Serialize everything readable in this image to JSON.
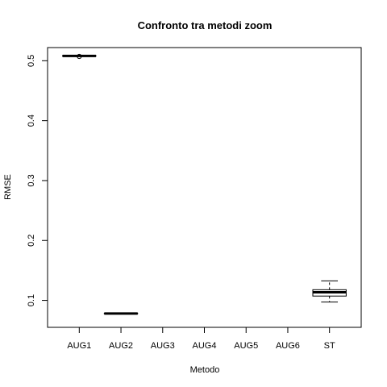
{
  "chart_data": {
    "type": "boxplot",
    "title": "Confronto tra metodi zoom",
    "xlabel": "Metodo",
    "ylabel": "RMSE",
    "categories": [
      "AUG1",
      "AUG2",
      "AUG3",
      "AUG4",
      "AUG5",
      "AUG6",
      "ST"
    ],
    "yticks": [
      "0.1",
      "0.2",
      "0.3",
      "0.4",
      "0.5"
    ],
    "ylim": [
      0.055,
      0.522
    ],
    "grid": false,
    "boxes": [
      {
        "category": "AUG1",
        "whisker_low": 0.5075,
        "q1": 0.5077,
        "median": 0.5081,
        "q3": 0.5085,
        "whisker_high": 0.5089,
        "outliers": [
          0.5072
        ]
      },
      {
        "category": "AUG2",
        "whisker_low": 0.0772,
        "q1": 0.0777,
        "median": 0.0781,
        "q3": 0.0786,
        "whisker_high": 0.0791,
        "outliers": []
      },
      {
        "category": "AUG3",
        "whisker_low": null,
        "q1": null,
        "median": null,
        "q3": null,
        "whisker_high": null,
        "outliers": []
      },
      {
        "category": "AUG4",
        "whisker_low": null,
        "q1": null,
        "median": null,
        "q3": null,
        "whisker_high": null,
        "outliers": []
      },
      {
        "category": "AUG5",
        "whisker_low": null,
        "q1": null,
        "median": null,
        "q3": null,
        "whisker_high": null,
        "outliers": []
      },
      {
        "category": "AUG6",
        "whisker_low": null,
        "q1": null,
        "median": null,
        "q3": null,
        "whisker_high": null,
        "outliers": []
      },
      {
        "category": "ST",
        "whisker_low": 0.0972,
        "q1": 0.1072,
        "median": 0.1135,
        "q3": 0.1178,
        "whisker_high": 0.1325,
        "outliers": []
      }
    ]
  }
}
